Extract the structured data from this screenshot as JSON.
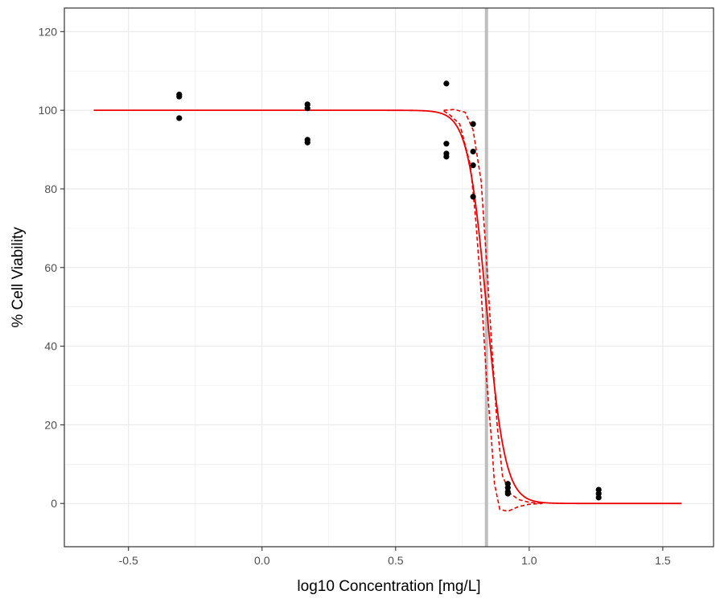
{
  "chart_data": {
    "type": "scatter",
    "title": "",
    "xlabel": "log10 Concentration [mg/L]",
    "ylabel": "% Cell Viability",
    "xlim": [
      -0.74,
      1.69
    ],
    "ylim": [
      -11,
      126
    ],
    "x_ticks": [
      -0.5,
      0.0,
      0.5,
      1.0,
      1.5
    ],
    "x_tick_labels": [
      "-0.5",
      "0.0",
      "0.5",
      "1.0",
      "1.5"
    ],
    "y_ticks": [
      0,
      20,
      40,
      60,
      80,
      100,
      120
    ],
    "y_tick_labels": [
      "0",
      "20",
      "40",
      "60",
      "80",
      "100",
      "120"
    ],
    "grid": true,
    "legend": "none",
    "colors": {
      "points": "#000000",
      "fit": "#ee0000",
      "reference_line": "#bebebe",
      "grid": "#ebebeb",
      "panel_border": "#333333"
    },
    "points": [
      {
        "x": -0.31,
        "y": 104.0
      },
      {
        "x": -0.31,
        "y": 103.5
      },
      {
        "x": -0.31,
        "y": 98.0
      },
      {
        "x": 0.17,
        "y": 101.5
      },
      {
        "x": 0.17,
        "y": 100.5
      },
      {
        "x": 0.17,
        "y": 92.5
      },
      {
        "x": 0.17,
        "y": 91.8
      },
      {
        "x": 0.69,
        "y": 106.8
      },
      {
        "x": 0.69,
        "y": 91.5
      },
      {
        "x": 0.69,
        "y": 89.0
      },
      {
        "x": 0.69,
        "y": 88.2
      },
      {
        "x": 0.79,
        "y": 96.5
      },
      {
        "x": 0.79,
        "y": 89.5
      },
      {
        "x": 0.79,
        "y": 86.0
      },
      {
        "x": 0.79,
        "y": 78.0
      },
      {
        "x": 0.92,
        "y": 5.0
      },
      {
        "x": 0.92,
        "y": 4.0
      },
      {
        "x": 0.92,
        "y": 3.0
      },
      {
        "x": 0.92,
        "y": 2.5
      },
      {
        "x": 1.26,
        "y": 3.5
      },
      {
        "x": 1.26,
        "y": 2.5
      },
      {
        "x": 1.26,
        "y": 1.5
      }
    ],
    "reference_line": {
      "x": 0.84
    },
    "fit": {
      "name": "",
      "x_range": [
        -0.63,
        1.57
      ],
      "top": 100,
      "bottom": 0,
      "x50": 0.84,
      "slope": 0.035
    },
    "confidence_band": {
      "x_range": [
        0.68,
        1.05
      ],
      "upper": [
        [
          0.68,
          100.0
        ],
        [
          0.72,
          100.2
        ],
        [
          0.76,
          99.5
        ],
        [
          0.79,
          95.0
        ],
        [
          0.82,
          82.0
        ],
        [
          0.84,
          62.0
        ],
        [
          0.86,
          40.0
        ],
        [
          0.88,
          20.0
        ],
        [
          0.9,
          7.0
        ],
        [
          0.93,
          2.5
        ],
        [
          0.96,
          1.0
        ],
        [
          1.0,
          0.3
        ],
        [
          1.05,
          0.0
        ]
      ],
      "lower": [
        [
          0.68,
          99.8
        ],
        [
          0.7,
          99.0
        ],
        [
          0.74,
          96.5
        ],
        [
          0.78,
          86.0
        ],
        [
          0.8,
          72.0
        ],
        [
          0.82,
          54.0
        ],
        [
          0.84,
          32.0
        ],
        [
          0.86,
          15.0
        ],
        [
          0.87,
          5.0
        ],
        [
          0.89,
          -1.5
        ],
        [
          0.92,
          -2.0
        ],
        [
          0.96,
          -0.8
        ],
        [
          1.0,
          -0.2
        ],
        [
          1.05,
          0.0
        ]
      ]
    }
  }
}
